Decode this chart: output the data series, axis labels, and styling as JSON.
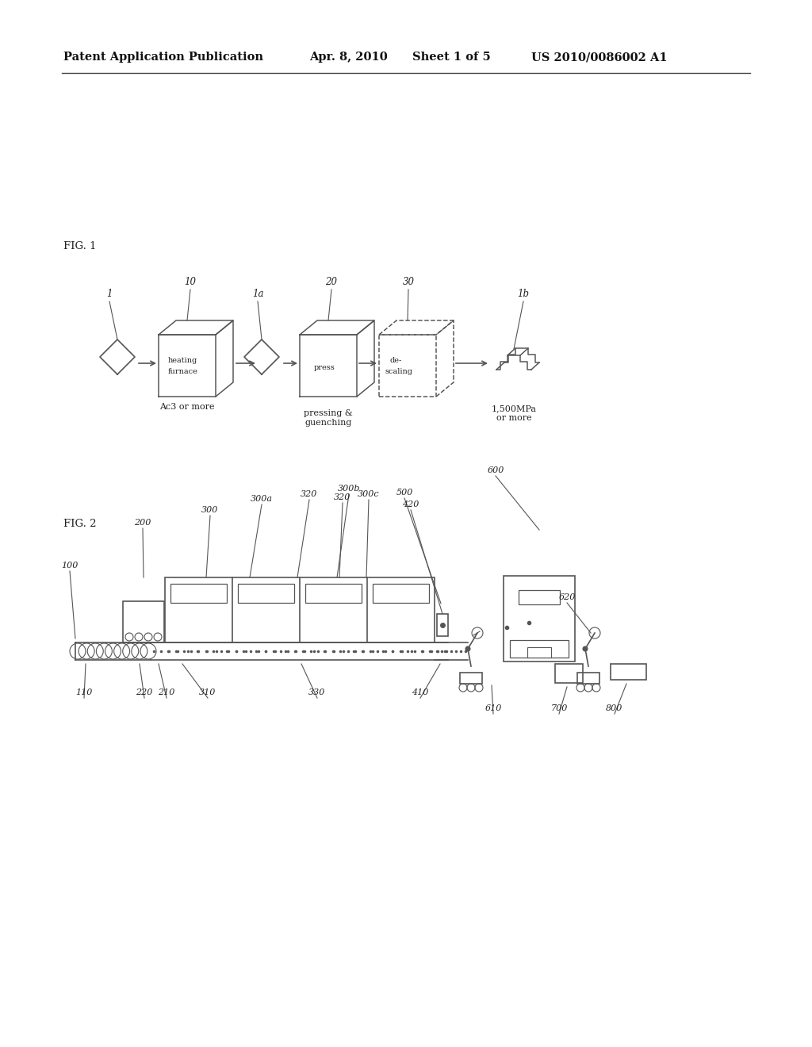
{
  "bg_color": "#ffffff",
  "line_color": "#555555",
  "header_text": "Patent Application Publication",
  "header_date": "Apr. 8, 2010",
  "header_sheet": "Sheet 1 of 5",
  "header_patent": "US 2010/0086002 A1",
  "fig1_label": "FIG. 1",
  "fig2_label": "FIG. 2"
}
